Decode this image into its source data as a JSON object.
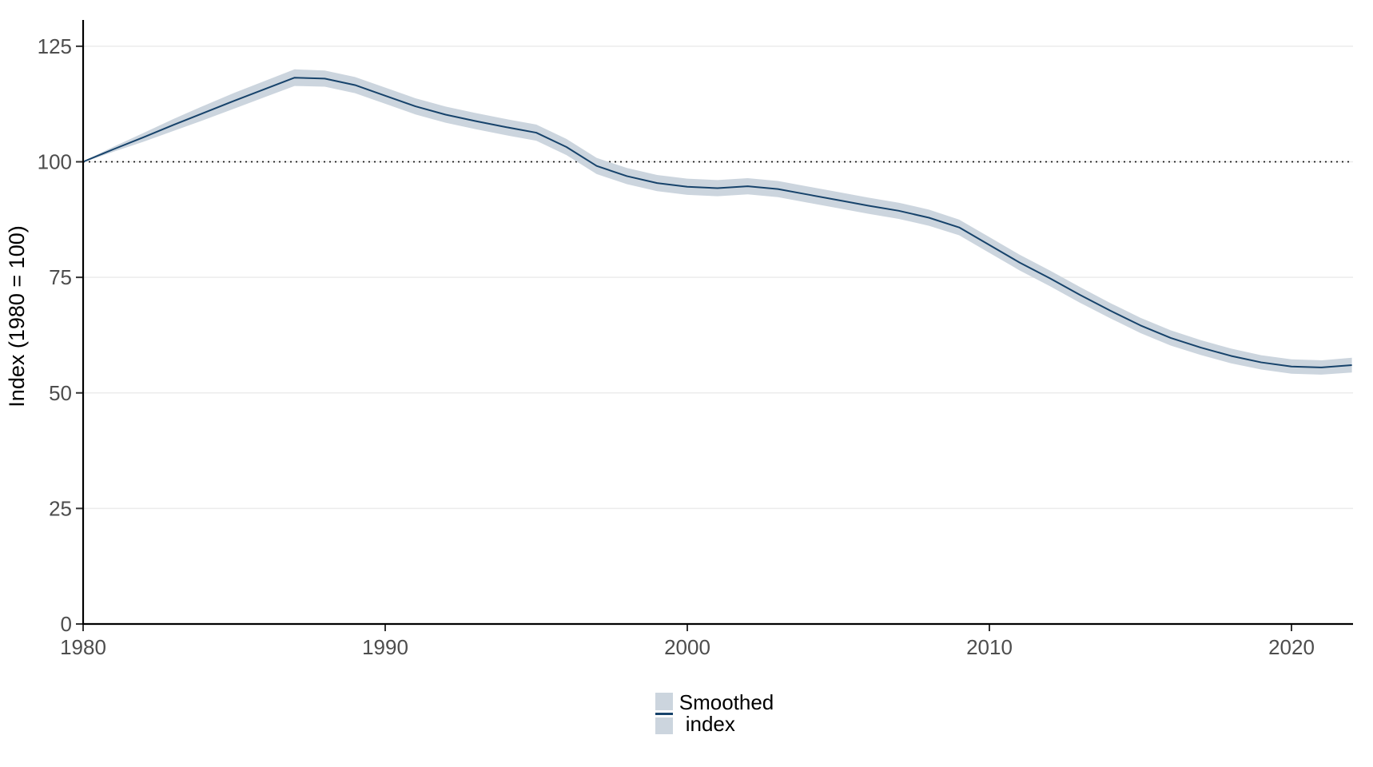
{
  "chart_data": {
    "type": "line",
    "title": "",
    "xlabel": "",
    "ylabel": "Index (1980 = 100)",
    "xlim": [
      1980,
      2022
    ],
    "ylim": [
      0,
      130.7
    ],
    "x_ticks": [
      "1980",
      "1990",
      "2000",
      "2010",
      "2020"
    ],
    "x_tick_values": [
      1980,
      1990,
      2000,
      2010,
      2020
    ],
    "y_ticks": [
      "0",
      "25",
      "50",
      "75",
      "100",
      "125"
    ],
    "y_tick_values": [
      0,
      25,
      50,
      75,
      100,
      125
    ],
    "grid": "horizontal-only",
    "reference_line_y": 100,
    "legend_position": "bottom-center",
    "series": [
      {
        "name": "Smoothed index",
        "x": [
          1980,
          1981,
          1982,
          1983,
          1984,
          1985,
          1986,
          1987,
          1988,
          1989,
          1990,
          1991,
          1992,
          1993,
          1994,
          1995,
          1996,
          1997,
          1998,
          1999,
          2000,
          2001,
          2002,
          2003,
          2004,
          2005,
          2006,
          2007,
          2008,
          2009,
          2010,
          2011,
          2012,
          2013,
          2014,
          2015,
          2016,
          2017,
          2018,
          2019,
          2020,
          2021,
          2022
        ],
        "y": [
          100.0,
          102.7,
          105.3,
          108.0,
          110.6,
          113.2,
          115.7,
          118.2,
          118.0,
          116.6,
          114.3,
          112.0,
          110.2,
          108.8,
          107.5,
          106.3,
          103.2,
          99.1,
          96.9,
          95.4,
          94.6,
          94.3,
          94.7,
          94.1,
          92.9,
          91.7,
          90.5,
          89.4,
          87.9,
          85.8,
          82.0,
          78.2,
          74.8,
          71.2,
          67.8,
          64.6,
          61.9,
          59.8,
          58.0,
          56.6,
          55.7,
          55.5,
          56.0
        ],
        "ci_half_width": [
          0.1,
          0.55,
          0.95,
          1.3,
          1.55,
          1.7,
          1.75,
          1.8,
          1.75,
          1.75,
          1.75,
          1.75,
          1.75,
          1.75,
          1.75,
          1.75,
          1.75,
          1.75,
          1.75,
          1.75,
          1.75,
          1.75,
          1.75,
          1.75,
          1.75,
          1.75,
          1.75,
          1.75,
          1.75,
          1.7,
          1.7,
          1.7,
          1.7,
          1.7,
          1.65,
          1.65,
          1.65,
          1.6,
          1.6,
          1.55,
          1.55,
          1.55,
          1.6
        ]
      }
    ],
    "colors": {
      "line": "#17436b",
      "ribbon": "#ccd5de",
      "grid": "#ececec",
      "axis": "#000000",
      "tick": "#333333",
      "tick_label": "#4d4d4d",
      "reference": "#1a1a1a",
      "background": "#ffffff"
    }
  },
  "y_axis": {
    "label": "Index (1980 = 100)"
  },
  "legend": {
    "line1": "Smoothed",
    "line2": "index"
  }
}
